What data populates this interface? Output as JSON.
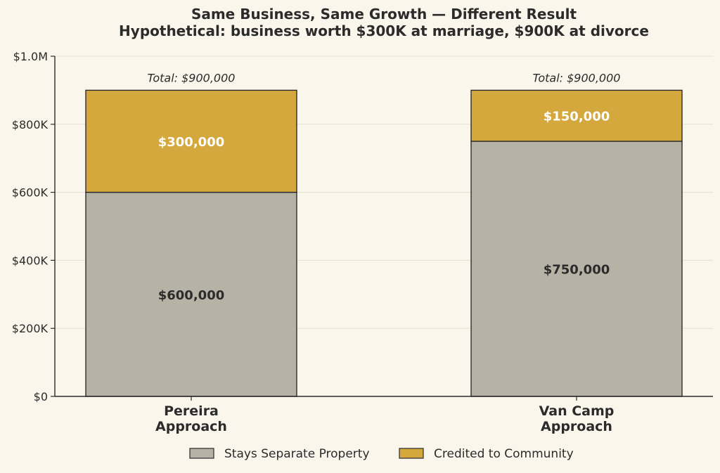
{
  "chart_data": {
    "type": "bar",
    "stacked": true,
    "title": "Same Business, Same Growth — Different Result",
    "subtitle": "Hypothetical: business worth $300K at marriage, $900K at divorce",
    "categories": [
      "Pereira\nApproach",
      "Van Camp\nApproach"
    ],
    "series": [
      {
        "name": "Stays Separate Property",
        "values": [
          600000,
          750000
        ],
        "labels": [
          "$600,000",
          "$750,000"
        ],
        "color": "#b6b2a6",
        "label_color": "#2b2b2b"
      },
      {
        "name": "Credited to Community",
        "values": [
          300000,
          150000
        ],
        "labels": [
          "$300,000",
          "$150,000"
        ],
        "color": "#d4a83c",
        "label_color": "#ffffff"
      }
    ],
    "totals": [
      "Total: $900,000",
      "Total: $900,000"
    ],
    "ylim": [
      0,
      1000000
    ],
    "yticks": [
      0,
      200000,
      400000,
      600000,
      800000,
      1000000
    ],
    "ytick_labels": [
      "$0",
      "$200K",
      "$400K",
      "$600K",
      "$800K",
      "$1.0M"
    ],
    "xlabel": "",
    "ylabel": "",
    "grid": "horizontal",
    "legend_position": "bottom-center"
  }
}
